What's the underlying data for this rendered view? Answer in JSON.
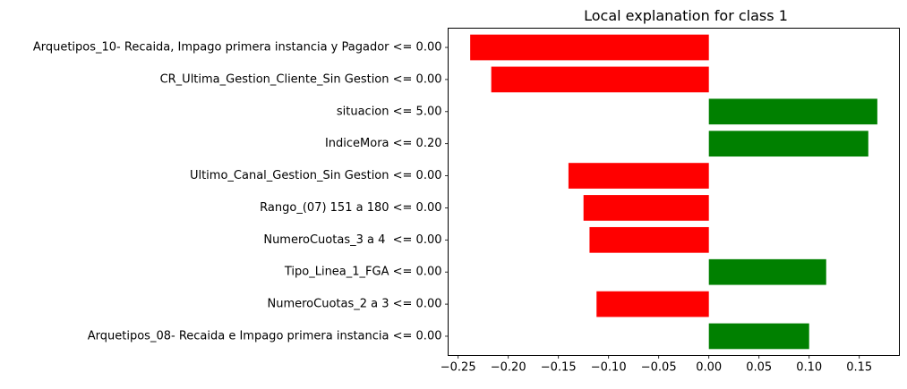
{
  "chart_data": {
    "type": "bar",
    "orientation": "horizontal",
    "title": "Local explanation for class 1",
    "xlabel": "",
    "ylabel": "",
    "xlim": [
      -0.26,
      0.19
    ],
    "grid": false,
    "legend": "none",
    "x_ticks": [
      -0.25,
      -0.2,
      -0.15,
      -0.1,
      -0.05,
      0.0,
      0.05,
      0.1,
      0.15
    ],
    "x_tick_labels": [
      "−0.25",
      "−0.20",
      "−0.15",
      "−0.10",
      "−0.05",
      "0.00",
      "0.05",
      "0.10",
      "0.15"
    ],
    "categories": [
      "Arquetipos_10- Recaida, Impago primera instancia y Pagador <= 0.00",
      "CR_Ultima_Gestion_Cliente_Sin Gestion <= 0.00",
      "situacion <= 5.00",
      "IndiceMora <= 0.20",
      "Ultimo_Canal_Gestion_Sin Gestion <= 0.00",
      "Rango_(07) 151 a 180 <= 0.00",
      "NumeroCuotas_3 a 4  <= 0.00",
      "Tipo_Linea_1_FGA <= 0.00",
      "NumeroCuotas_2 a 3 <= 0.00",
      "Arquetipos_08- Recaida e Impago primera instancia <= 0.00"
    ],
    "values": [
      -0.238,
      -0.217,
      0.168,
      0.159,
      -0.14,
      -0.125,
      -0.119,
      0.117,
      -0.112,
      0.1
    ],
    "colors": {
      "positive": "#008000",
      "negative": "#ff0000"
    }
  }
}
